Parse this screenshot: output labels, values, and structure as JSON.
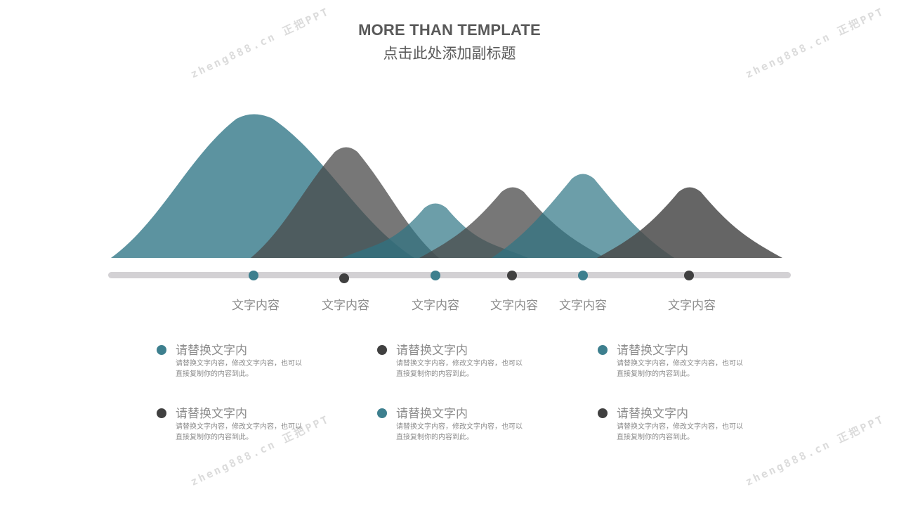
{
  "header": {
    "title": "MORE THAN TEMPLATE",
    "subtitle": "点击此处添加副标题"
  },
  "watermark": {
    "text": "zheng888.cn 正把PPT"
  },
  "colors": {
    "teal": "#3d7f8e",
    "dark": "#404040",
    "teal_fill": "#2e7585",
    "gray_fill": "#4a4a4a",
    "track": "#d3d1d4"
  },
  "timeline": {
    "markers": [
      {
        "label": "文字内容",
        "color": "teal"
      },
      {
        "label": "文字内容",
        "color": "dark"
      },
      {
        "label": "文字内容",
        "color": "teal"
      },
      {
        "label": "文字内容",
        "color": "dark"
      },
      {
        "label": "文字内容",
        "color": "teal"
      },
      {
        "label": "文字内容",
        "color": "dark"
      }
    ]
  },
  "mountains": [
    {
      "color": "teal",
      "opacity": 0.78
    },
    {
      "color": "gray",
      "opacity": 0.75
    },
    {
      "color": "teal",
      "opacity": 0.7
    },
    {
      "color": "gray",
      "opacity": 0.75
    },
    {
      "color": "teal",
      "opacity": 0.7
    },
    {
      "color": "gray",
      "opacity": 0.85
    }
  ],
  "items": [
    {
      "title": "请替换文字内",
      "desc": "请替换文字内容，修改文字内容，也可以直接复制你的内容到此。",
      "color": "teal"
    },
    {
      "title": "请替换文字内",
      "desc": "请替换文字内容，修改文字内容，也可以直接复制你的内容到此。",
      "color": "dark"
    },
    {
      "title": "请替换文字内",
      "desc": "请替换文字内容，修改文字内容，也可以直接复制你的内容到此。",
      "color": "teal"
    },
    {
      "title": "请替换文字内",
      "desc": "请替换文字内容，修改文字内容，也可以直接复制你的内容到此。",
      "color": "dark"
    },
    {
      "title": "请替换文字内",
      "desc": "请替换文字内容，修改文字内容，也可以直接复制你的内容到此。",
      "color": "teal"
    },
    {
      "title": "请替换文字内",
      "desc": "请替换文字内容，修改文字内容，也可以直接复制你的内容到此。",
      "color": "dark"
    }
  ]
}
